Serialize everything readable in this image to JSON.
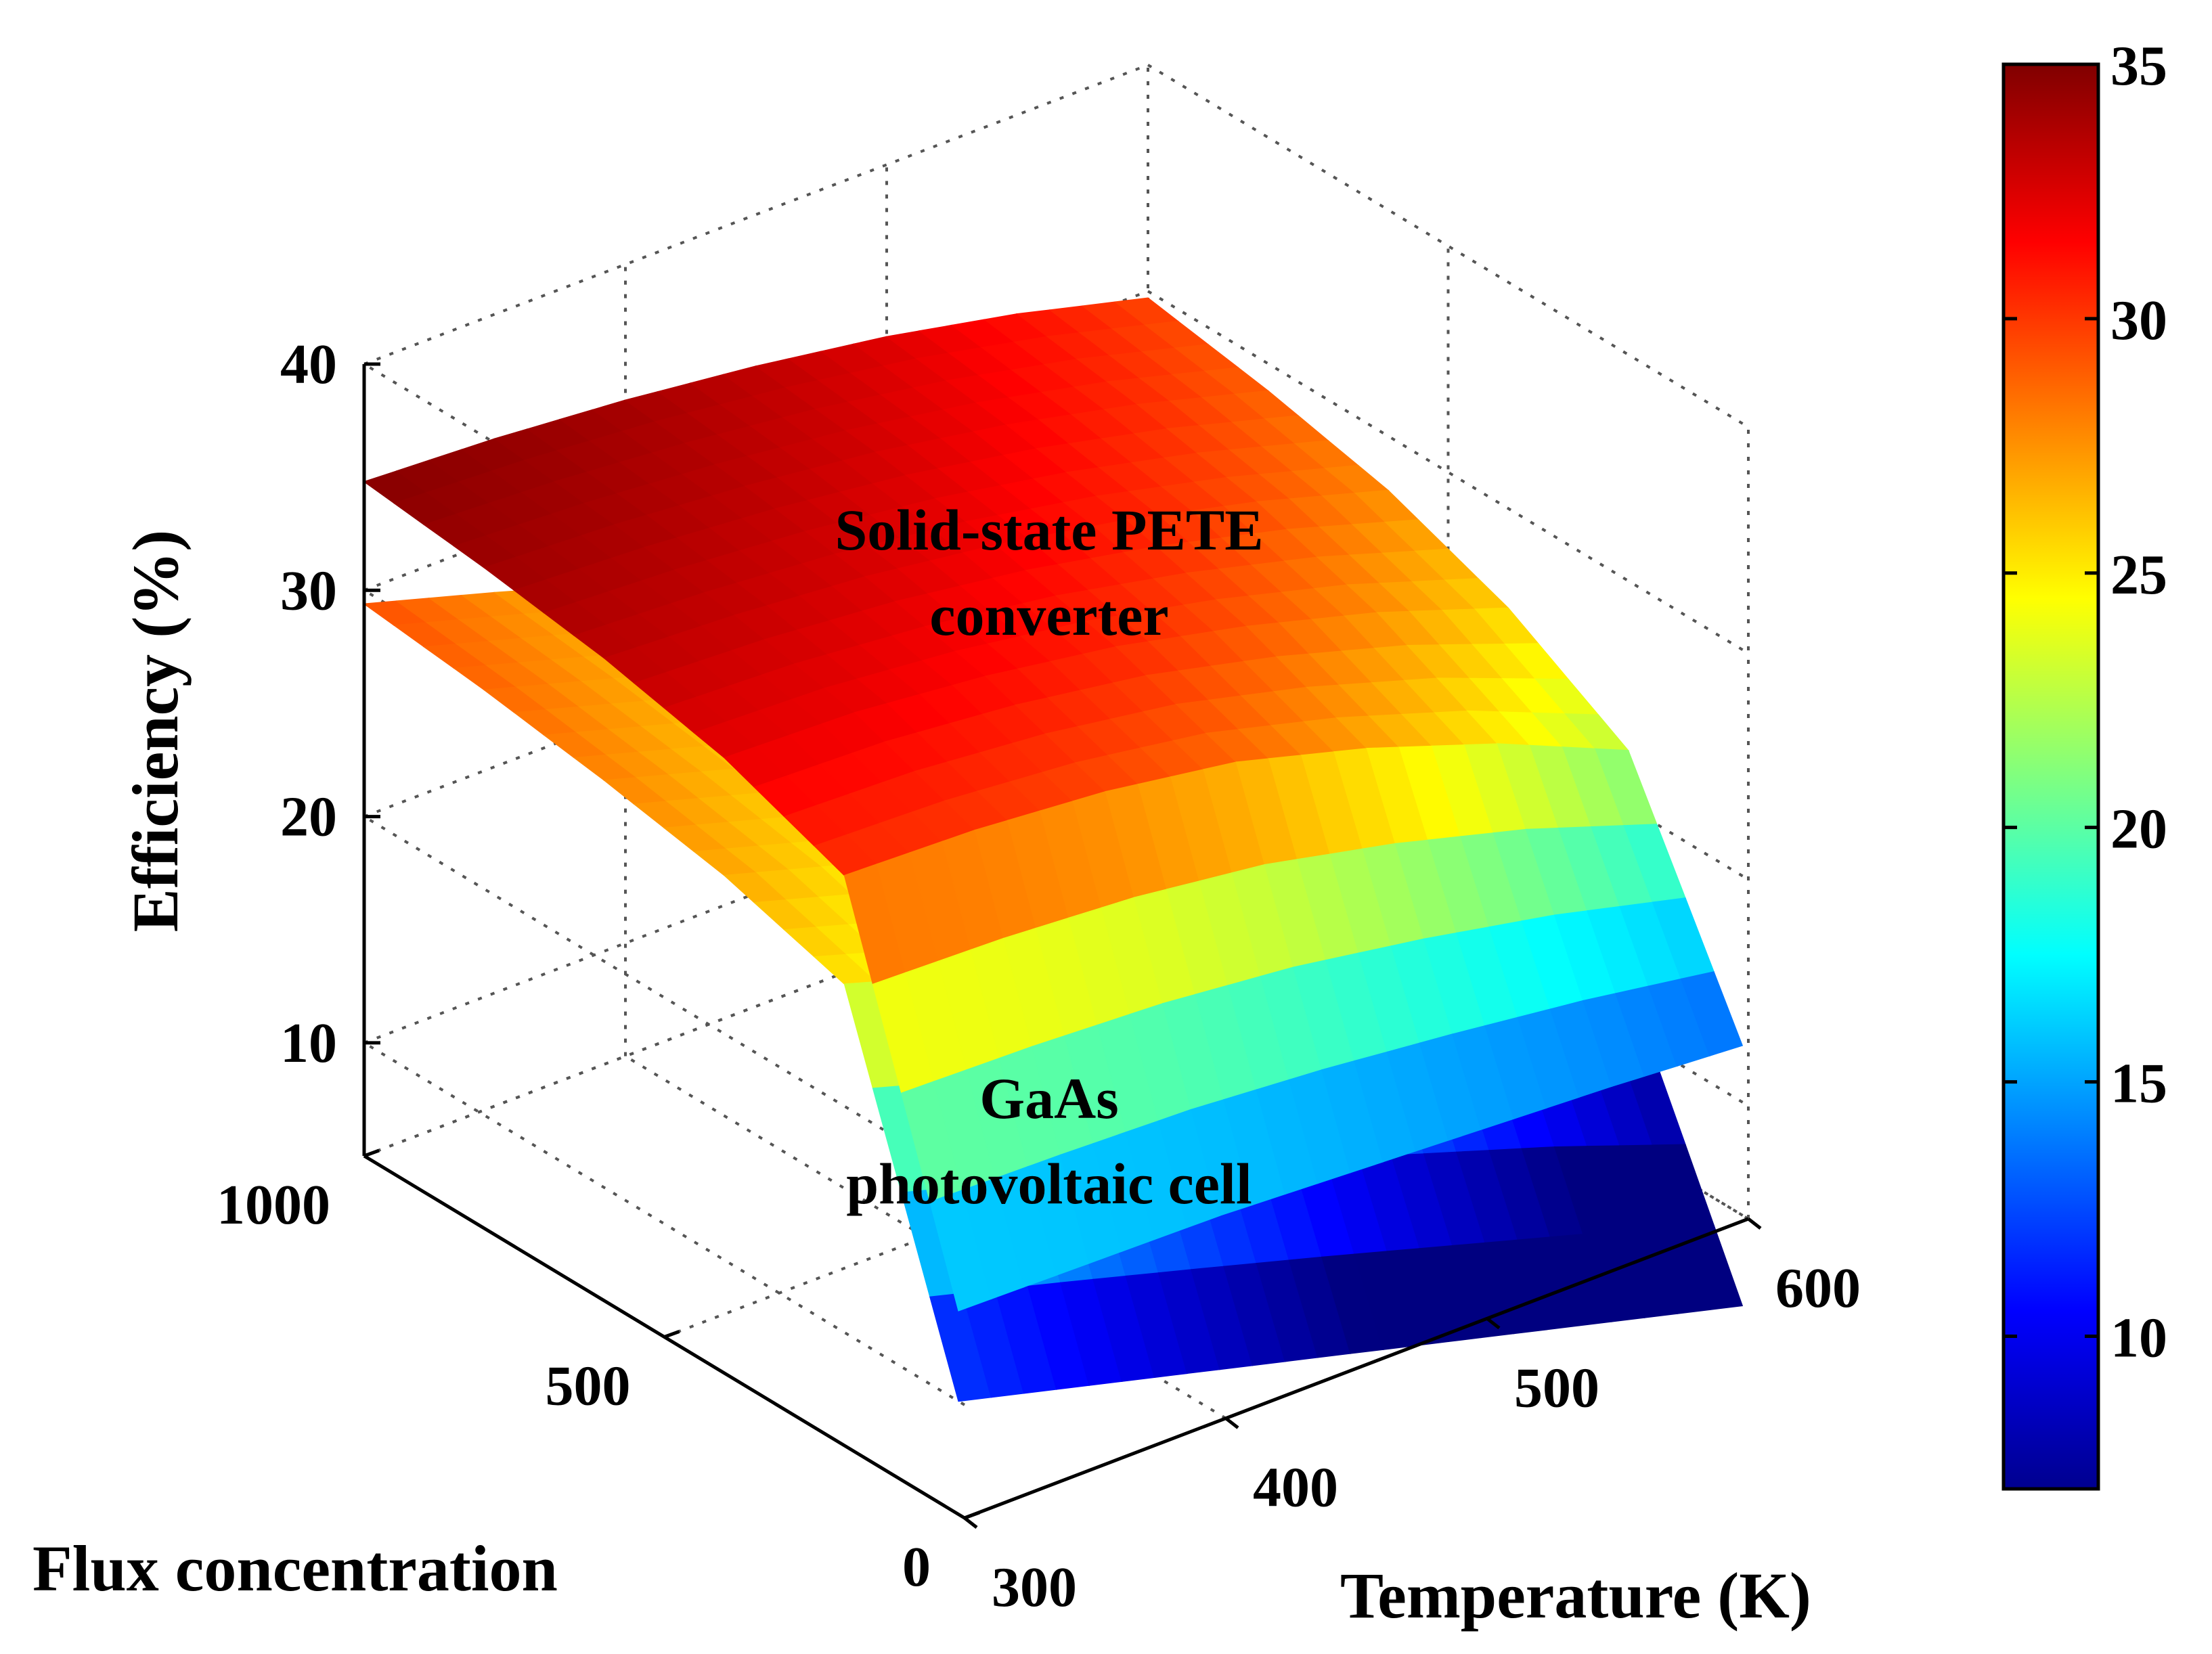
{
  "chart_data": {
    "type": "surface3d",
    "xlabel": "Temperature (K)",
    "ylabel": "Flux concentration",
    "zlabel": "Efficiency (%)",
    "xlim": [
      300,
      600
    ],
    "ylim": [
      0,
      1000
    ],
    "zlim": [
      5,
      40
    ],
    "x_ticks": [
      300,
      400,
      500,
      600
    ],
    "y_ticks": [
      0,
      500,
      1000
    ],
    "z_ticks": [
      10,
      20,
      30,
      40
    ],
    "x_tick_labels": [
      "300",
      "400",
      "500",
      "600"
    ],
    "y_tick_labels": [
      "0",
      "500",
      "1000"
    ],
    "z_tick_labels": [
      "10",
      "20",
      "30",
      "40"
    ],
    "colorbar": {
      "range": [
        7,
        35
      ],
      "ticks": [
        10,
        15,
        20,
        25,
        30,
        35
      ],
      "tick_labels": [
        "10",
        "15",
        "20",
        "25",
        "30",
        "35"
      ],
      "colormap": "jet"
    },
    "series": [
      {
        "name": "Solid-state PETE converter",
        "label_lines": [
          "Solid-state PETE",
          "converter"
        ],
        "temperature": [
          300,
          350,
          400,
          450,
          500,
          550,
          600
        ],
        "flux": [
          10,
          200,
          400,
          600,
          800,
          1000
        ],
        "efficiency": [
          [
            14.0,
            13.9,
            13.8,
            13.5,
            13.2,
            12.9,
            12.5
          ],
          [
            30.2,
            30.0,
            29.5,
            28.6,
            27.0,
            25.0,
            22.5
          ],
          [
            32.2,
            32.0,
            31.4,
            30.5,
            29.2,
            27.6,
            25.6
          ],
          [
            33.4,
            33.1,
            32.6,
            31.8,
            30.7,
            29.3,
            27.6
          ],
          [
            34.2,
            33.9,
            33.4,
            32.7,
            31.7,
            30.4,
            28.8
          ],
          [
            34.8,
            34.5,
            34.0,
            33.3,
            32.4,
            31.2,
            29.7
          ]
        ]
      },
      {
        "name": "GaAs photovoltaic cell",
        "label_lines": [
          "GaAs",
          "photovoltaic cell"
        ],
        "temperature": [
          300,
          350,
          400,
          450,
          500,
          550,
          600
        ],
        "flux": [
          10,
          200,
          400,
          600,
          800,
          1000
        ],
        "efficiency": [
          [
            10.0,
            8.5,
            7.0,
            5.5,
            4.0,
            2.5,
            1.0
          ],
          [
            25.4,
            23.6,
            21.6,
            19.5,
            17.2,
            14.9,
            12.2
          ],
          [
            27.0,
            25.3,
            23.4,
            21.4,
            19.2,
            16.9,
            14.4
          ],
          [
            28.0,
            26.3,
            24.5,
            22.5,
            20.4,
            18.2,
            15.7
          ],
          [
            28.8,
            27.1,
            25.3,
            23.4,
            21.3,
            19.1,
            16.7
          ],
          [
            29.4,
            27.7,
            25.9,
            24.0,
            22.0,
            19.8,
            17.4
          ]
        ]
      }
    ]
  }
}
